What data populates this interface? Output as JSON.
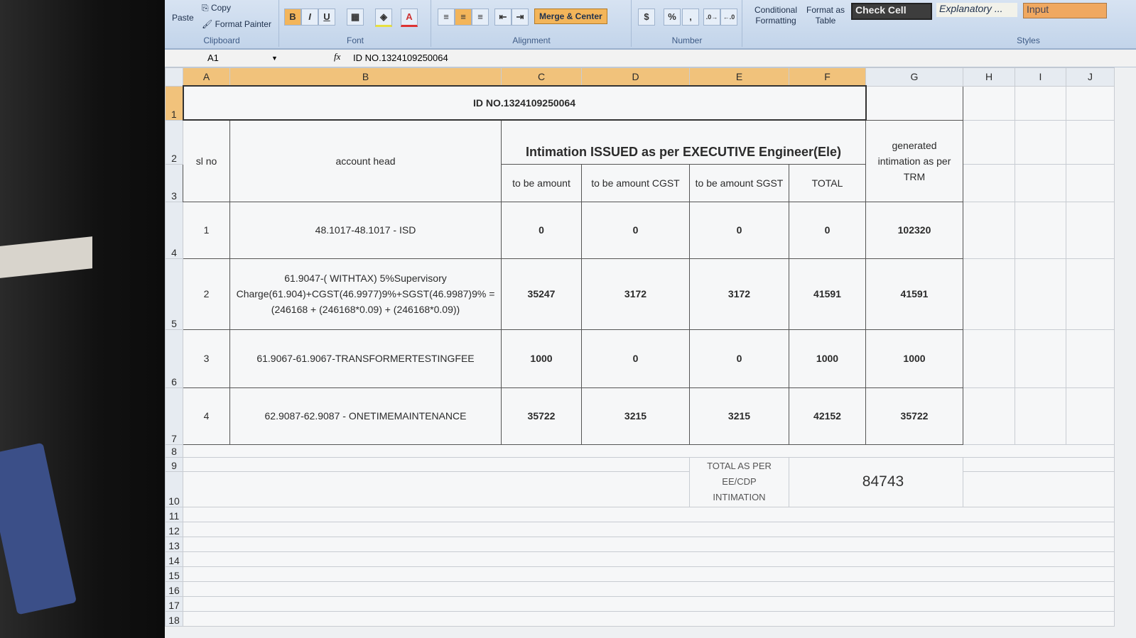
{
  "ribbon": {
    "clipboard": {
      "paste": "Paste",
      "copy": "Copy",
      "format_painter": "Format Painter",
      "label": "Clipboard"
    },
    "font": {
      "bold": "B",
      "italic": "I",
      "underline": "U",
      "font_color": "A",
      "label": "Font"
    },
    "alignment": {
      "merge_center": "Merge & Center",
      "label": "Alignment"
    },
    "number": {
      "percent": "%",
      "comma": ",",
      "label": "Number"
    },
    "styles": {
      "conditional_formatting": "Conditional Formatting",
      "format_as_table": "Format as Table",
      "check_cell": "Check Cell",
      "explanatory": "Explanatory ...",
      "input": "Input",
      "label": "Styles"
    }
  },
  "formula_bar": {
    "name_box": "A1",
    "fx": "fx",
    "formula": "ID NO.1324109250064"
  },
  "columns": [
    "A",
    "B",
    "C",
    "D",
    "E",
    "F",
    "G",
    "H",
    "I",
    "J"
  ],
  "rows": [
    "1",
    "2",
    "3",
    "4",
    "5",
    "6",
    "7",
    "8",
    "9",
    "10",
    "11",
    "12",
    "13",
    "14",
    "15",
    "16",
    "17",
    "18"
  ],
  "sheet": {
    "title": "ID NO.1324109250064",
    "sl_no_header": "sl no",
    "account_head_header": "account head",
    "intimation_header": "Intimation ISSUED as per EXECUTIVE Engineer(Ele)",
    "sub_headers": [
      "to be amount",
      "to be amount CGST",
      "to be amount SGST",
      "TOTAL"
    ],
    "generated_header": "generated intimation as per TRM",
    "data_rows": [
      {
        "sl": "1",
        "head": "48.1017-48.1017 - ISD",
        "amount": "0",
        "cgst": "0",
        "sgst": "0",
        "total": "0",
        "generated": "102320"
      },
      {
        "sl": "2",
        "head": "61.9047-( WITHTAX) 5%Supervisory Charge(61.904)+CGST(46.9977)9%+SGST(46.9987)9% = (246168 + (246168*0.09) + (246168*0.09))",
        "amount": "35247",
        "cgst": "3172",
        "sgst": "3172",
        "total": "41591",
        "generated": "41591"
      },
      {
        "sl": "3",
        "head": "61.9067-61.9067-TRANSFORMERTESTINGFEE",
        "amount": "1000",
        "cgst": "0",
        "sgst": "0",
        "total": "1000",
        "generated": "1000"
      },
      {
        "sl": "4",
        "head": "62.9087-62.9087 - ONETIMEMAINTENANCE",
        "amount": "35722",
        "cgst": "3215",
        "sgst": "3215",
        "total": "42152",
        "generated": "35722"
      }
    ],
    "total_label": "TOTAL AS PER EE/CDP INTIMATION",
    "total_value": "84743"
  }
}
